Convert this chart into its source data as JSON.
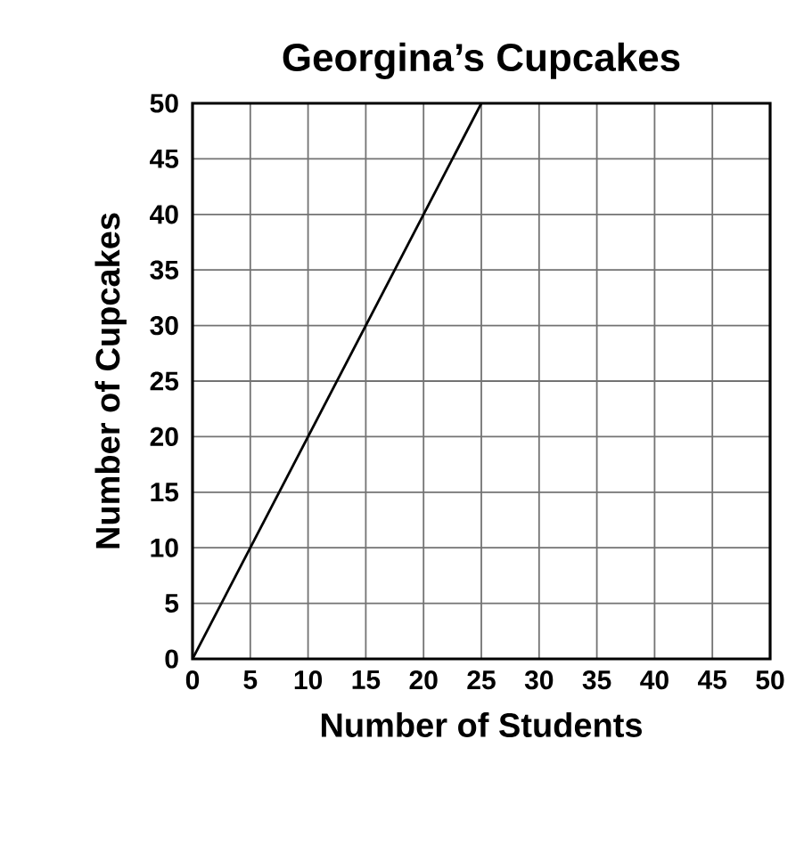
{
  "chart_data": {
    "type": "line",
    "title": "Georgina’s Cupcakes",
    "xlabel": "Number of Students",
    "ylabel": "Number of Cupcakes",
    "x": [
      0,
      25
    ],
    "values": [
      0,
      50
    ],
    "color": "#000000",
    "marker": "none",
    "line_style": "solid",
    "xlim": [
      0,
      50
    ],
    "ylim": [
      0,
      50
    ],
    "xticks": [
      0,
      5,
      10,
      15,
      20,
      25,
      30,
      35,
      40,
      45,
      50
    ],
    "yticks": [
      0,
      5,
      10,
      15,
      20,
      25,
      30,
      35,
      40,
      45,
      50
    ],
    "grid": true
  }
}
